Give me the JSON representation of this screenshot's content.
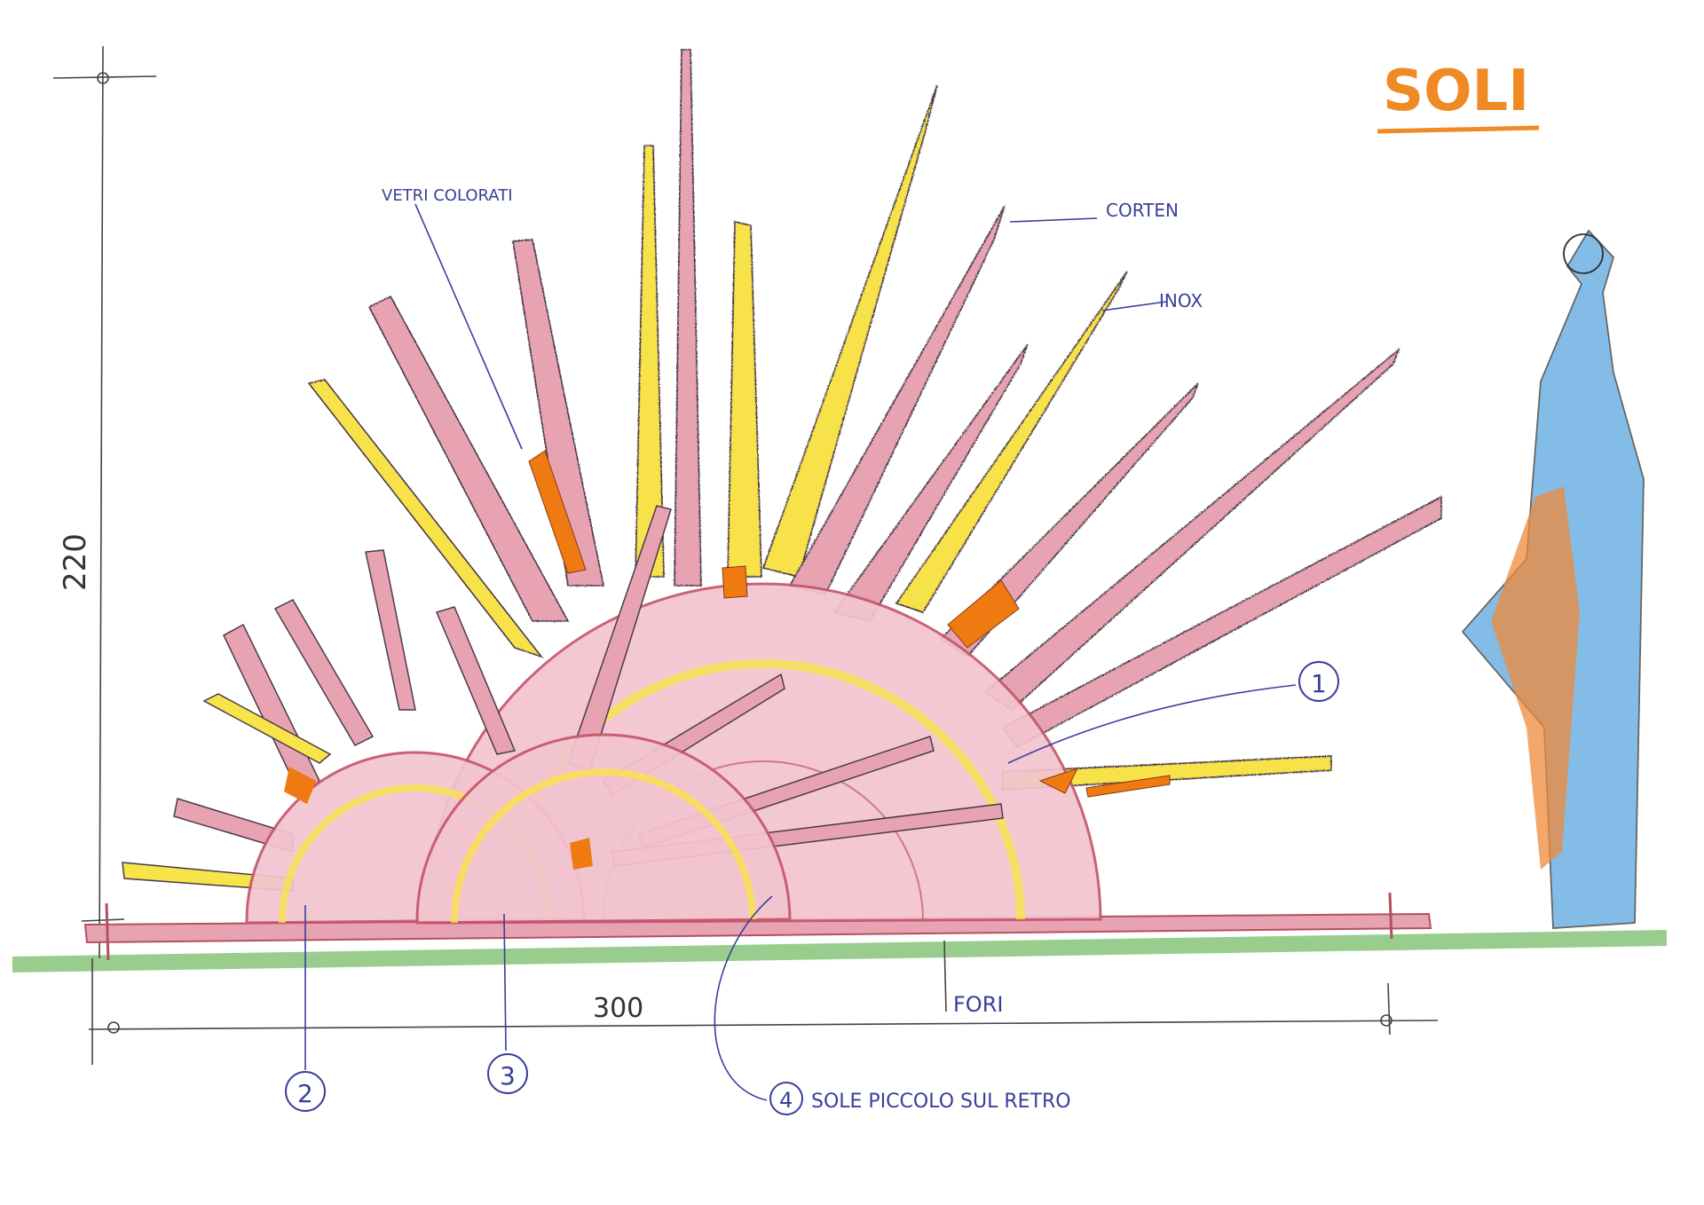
{
  "title": "SOLI",
  "labels": {
    "vetri_colorati": "VETRI COLORATI",
    "corten": "CORTEN",
    "inox": "INOX",
    "fori": "FORI",
    "sole_piccolo": "SOLE PICCOLO SUL RETRO"
  },
  "dimensions": {
    "height": "220",
    "width": "300"
  },
  "callouts": [
    "1",
    "2",
    "3",
    "4"
  ],
  "colors": {
    "corten": "#e8a3b3",
    "inox": "#f7e34a",
    "glass": "#f07a12",
    "ink": "#3a3f9a",
    "ground": "#86c47a",
    "figure_blue": "#5aa8e0",
    "figure_orange": "#f08a3a",
    "title": "#f08a24"
  }
}
